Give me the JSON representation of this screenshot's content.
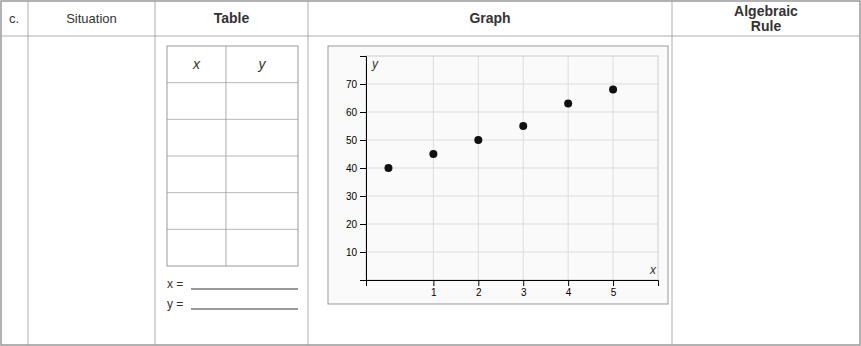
{
  "chart_data": {
    "type": "scatter",
    "title": "Graph",
    "x_label": "x",
    "y_label": "y",
    "x": [
      0,
      1,
      2,
      3,
      4,
      5
    ],
    "values": [
      40,
      45,
      50,
      55,
      63,
      68
    ],
    "xlim": [
      -0.5,
      6
    ],
    "ylim": [
      0,
      80
    ],
    "xticks": [
      1,
      2,
      3,
      4,
      5
    ],
    "yticks": [
      10,
      20,
      30,
      40,
      50,
      60,
      70
    ],
    "grid": true,
    "color": "#111111",
    "annotations": [
      "c.",
      "Situation",
      "Table",
      "Algebraic\nRule",
      "x",
      "y",
      "x =",
      "y ="
    ]
  }
}
